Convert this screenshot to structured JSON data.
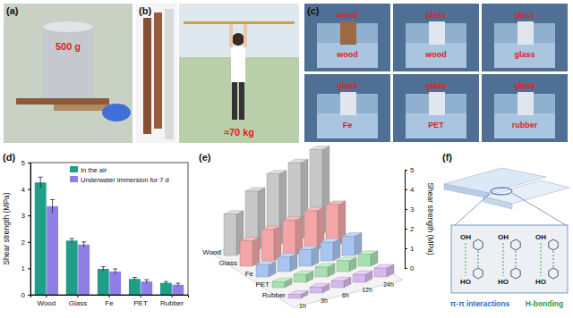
{
  "photos": {
    "a": {
      "label": "(a)",
      "annotation": "500 g"
    },
    "b": {
      "label": "(b)",
      "annotation": "≈70 kg"
    },
    "c": {
      "label": "(c)",
      "tiles": [
        {
          "top": "wood",
          "bottom": "wood"
        },
        {
          "top": "glass",
          "bottom": "wood"
        },
        {
          "top": "glass",
          "bottom": "glass"
        },
        {
          "top": "glass",
          "bottom": "Fe"
        },
        {
          "top": "glass",
          "bottom": "PET"
        },
        {
          "top": "glass",
          "bottom": "rubber"
        }
      ]
    }
  },
  "schematic": {
    "label": "(f)",
    "top_groups": [
      "OH",
      "OH",
      "OH"
    ],
    "bottom_groups": [
      "HO",
      "HO",
      "HO"
    ],
    "captions": [
      "π-π interactions",
      "H-bonding"
    ]
  },
  "chart_data": [
    {
      "type": "bar",
      "annotation": "(d)",
      "categories": [
        "Wood",
        "Glass",
        "Fe",
        "PET",
        "Rubber"
      ],
      "y_label": "Shear strength (MPa)",
      "ylim": [
        0,
        5
      ],
      "yticks": [
        0,
        1,
        2,
        3,
        4,
        5
      ],
      "legend": "top-right",
      "series": [
        {
          "name": "In the air",
          "color": "#1f9e89",
          "values": [
            4.25,
            2.05,
            0.98,
            0.6,
            0.45
          ],
          "errors": [
            0.2,
            0.08,
            0.08,
            0.06,
            0.05
          ]
        },
        {
          "name": "Underwater immersion for 7 d",
          "color": "#8e7fe6",
          "values": [
            3.35,
            1.9,
            0.88,
            0.5,
            0.38
          ],
          "errors": [
            0.25,
            0.1,
            0.1,
            0.07,
            0.06
          ]
        }
      ]
    },
    {
      "type": "bar3d",
      "annotation": "(e)",
      "categories": [
        "Wood",
        "Glass",
        "Fe",
        "PET",
        "Rubber"
      ],
      "colors": [
        "#c8c8c8",
        "#f4a6a6",
        "#a8c4f0",
        "#a8e0b0",
        "#d6b8ee"
      ],
      "depth_categories": [
        "1h",
        "3h",
        "6h",
        "12h",
        "24h"
      ],
      "values": [
        [
          2.1,
          3.0,
          3.6,
          3.9,
          4.3
        ],
        [
          1.3,
          1.6,
          1.8,
          2.0,
          2.05
        ],
        [
          0.6,
          0.75,
          0.85,
          0.95,
          0.98
        ],
        [
          0.3,
          0.4,
          0.5,
          0.55,
          0.6
        ],
        [
          0.2,
          0.3,
          0.35,
          0.4,
          0.45
        ]
      ],
      "z_label": "Shear strength (MPa)",
      "zlim": [
        0,
        5
      ],
      "zticks": [
        0,
        1,
        2,
        3,
        4,
        5
      ]
    }
  ]
}
